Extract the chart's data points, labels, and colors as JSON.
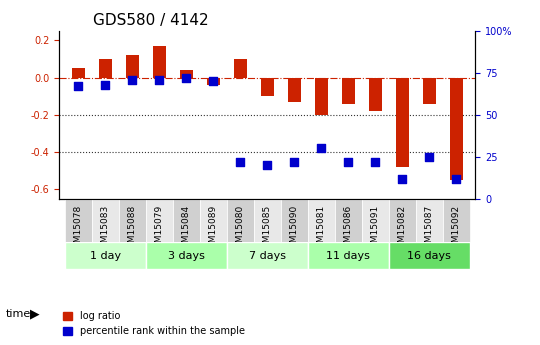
{
  "title": "GDS580 / 4142",
  "samples": [
    "GSM15078",
    "GSM15083",
    "GSM15088",
    "GSM15079",
    "GSM15084",
    "GSM15089",
    "GSM15080",
    "GSM15085",
    "GSM15090",
    "GSM15081",
    "GSM15086",
    "GSM15091",
    "GSM15082",
    "GSM15087",
    "GSM15092"
  ],
  "log_ratio": [
    0.05,
    0.1,
    0.12,
    0.17,
    0.04,
    -0.04,
    0.1,
    -0.1,
    -0.13,
    -0.2,
    -0.14,
    -0.18,
    -0.48,
    -0.14,
    -0.55
  ],
  "pct_rank": [
    67,
    68,
    71,
    71,
    72,
    70,
    22,
    20,
    22,
    30,
    22,
    22,
    12,
    25,
    12
  ],
  "groups": [
    {
      "label": "1 day",
      "start": 0,
      "end": 3,
      "color": "#ccffcc"
    },
    {
      "label": "3 days",
      "start": 3,
      "end": 6,
      "color": "#aaffaa"
    },
    {
      "label": "7 days",
      "start": 6,
      "end": 9,
      "color": "#ccffcc"
    },
    {
      "label": "11 days",
      "start": 9,
      "end": 12,
      "color": "#aaffaa"
    },
    {
      "label": "16 days",
      "start": 12,
      "end": 15,
      "color": "#66dd66"
    }
  ],
  "bar_color": "#cc2200",
  "dot_color": "#0000cc",
  "ylim_left": [
    -0.65,
    0.25
  ],
  "yticks_left": [
    0.2,
    0.0,
    -0.2,
    -0.4,
    -0.6
  ],
  "ylim_right": [
    0,
    100
  ],
  "yticks_right": [
    0,
    25,
    50,
    75,
    100
  ],
  "hline_color": "#cc2200",
  "dotted_line_color": "#333333",
  "dotted_lines": [
    -0.2,
    -0.4
  ],
  "bar_width": 0.5,
  "dot_size": 30,
  "tick_label_size": 7,
  "sample_label_size": 6.5,
  "group_label_size": 8,
  "title_fontsize": 11,
  "legend_bar_label": "log ratio",
  "legend_dot_label": "percentile rank within the sample",
  "time_label": "time",
  "pct_scale_factor": 0.006
}
